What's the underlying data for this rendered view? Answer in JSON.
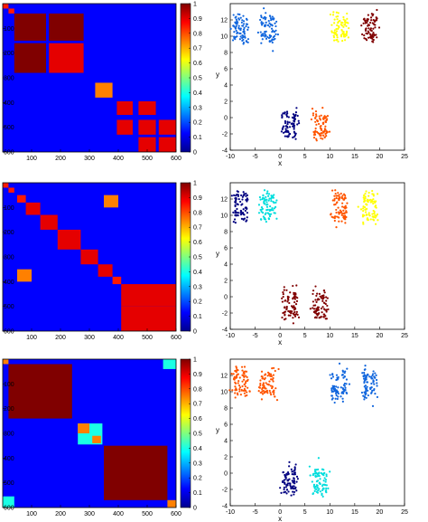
{
  "colorbar_ticks": [
    "0",
    "0.1",
    "0.2",
    "0.3",
    "0.4",
    "0.5",
    "0.6",
    "0.7",
    "0.8",
    "0.9",
    "1"
  ],
  "chart_data": [
    {
      "type": "heatmap",
      "row": 1,
      "size": 600,
      "xticks": [
        "100",
        "200",
        "300",
        "400",
        "500",
        "600"
      ],
      "yticks": [
        "100",
        "200",
        "300",
        "400",
        "500",
        "600"
      ],
      "zlim": [
        0,
        1
      ],
      "colorbar": true,
      "blocks": [
        {
          "from": 0,
          "to": 20,
          "value": 0.85
        },
        {
          "from": 20,
          "to": 40,
          "value": 0.85
        },
        {
          "from": 40,
          "to": 150,
          "value": 1.0
        },
        {
          "from": 160,
          "to": 280,
          "value": 0.9
        },
        {
          "from": 320,
          "to": 380,
          "value": 0.75
        },
        {
          "from": 395,
          "to": 450,
          "value": 0.9
        },
        {
          "from": 470,
          "to": 530,
          "value": 0.9
        },
        {
          "from": 540,
          "to": 600,
          "value": 0.9
        }
      ],
      "overlays": [
        {
          "x": [
            40,
            150
          ],
          "y": [
            160,
            280
          ],
          "value": 1.0
        },
        {
          "x": [
            160,
            280
          ],
          "y": [
            40,
            150
          ],
          "value": 1.0
        },
        {
          "x": [
            395,
            450
          ],
          "y": [
            470,
            530
          ],
          "value": 0.9
        },
        {
          "x": [
            470,
            530
          ],
          "y": [
            395,
            450
          ],
          "value": 0.9
        },
        {
          "x": [
            470,
            530
          ],
          "y": [
            540,
            600
          ],
          "value": 0.9
        },
        {
          "x": [
            540,
            600
          ],
          "y": [
            470,
            530
          ],
          "value": 0.9
        }
      ]
    },
    {
      "type": "scatter",
      "row": 1,
      "xlabel": "x",
      "ylabel": "y",
      "xlim": [
        -10,
        25
      ],
      "ylim": [
        -4,
        14
      ],
      "xticks": [
        -10,
        -5,
        0,
        5,
        10,
        15,
        20,
        25
      ],
      "yticks": [
        -4,
        -2,
        0,
        2,
        4,
        6,
        8,
        10,
        12
      ],
      "clusters": [
        {
          "cx": -8,
          "cy": 11,
          "color": "#1166dd"
        },
        {
          "cx": -2.5,
          "cy": 11,
          "color": "#1166dd"
        },
        {
          "cx": 12,
          "cy": 11,
          "color": "#ffff00"
        },
        {
          "cx": 18,
          "cy": 11,
          "color": "#800000"
        },
        {
          "cx": 2,
          "cy": -1,
          "color": "#000080"
        },
        {
          "cx": 8,
          "cy": -1,
          "color": "#ff5500"
        }
      ]
    },
    {
      "type": "heatmap",
      "row": 2,
      "size": 600,
      "xticks": [
        "100",
        "200",
        "300",
        "400",
        "500",
        "600"
      ],
      "yticks": [
        "100",
        "200",
        "300",
        "400",
        "500",
        "600"
      ],
      "zlim": [
        0,
        1
      ],
      "colorbar": true,
      "blocks": [
        {
          "from": 0,
          "to": 20,
          "value": 0.85
        },
        {
          "from": 20,
          "to": 40,
          "value": 0.85
        },
        {
          "from": 50,
          "to": 80,
          "value": 0.85
        },
        {
          "from": 80,
          "to": 130,
          "value": 0.9
        },
        {
          "from": 130,
          "to": 190,
          "value": 0.9
        },
        {
          "from": 190,
          "to": 270,
          "value": 0.9
        },
        {
          "from": 270,
          "to": 330,
          "value": 0.9
        },
        {
          "from": 330,
          "to": 380,
          "value": 0.9
        },
        {
          "from": 380,
          "to": 410,
          "value": 0.85
        },
        {
          "from": 410,
          "to": 500,
          "value": 0.9
        },
        {
          "from": 500,
          "to": 600,
          "value": 0.9
        }
      ],
      "overlays": [
        {
          "x": [
            350,
            400
          ],
          "y": [
            50,
            100
          ],
          "value": 0.75
        },
        {
          "x": [
            50,
            100
          ],
          "y": [
            350,
            400
          ],
          "value": 0.75
        },
        {
          "x": [
            410,
            500
          ],
          "y": [
            500,
            600
          ],
          "value": 0.9
        },
        {
          "x": [
            500,
            600
          ],
          "y": [
            410,
            500
          ],
          "value": 0.9
        }
      ]
    },
    {
      "type": "scatter",
      "row": 2,
      "xlabel": "x",
      "ylabel": "y",
      "xlim": [
        -10,
        25
      ],
      "ylim": [
        -4,
        14
      ],
      "xticks": [
        -10,
        -5,
        0,
        5,
        10,
        15,
        20,
        25
      ],
      "yticks": [
        -4,
        -2,
        0,
        2,
        4,
        6,
        8,
        10,
        12
      ],
      "clusters": [
        {
          "cx": -8,
          "cy": 11,
          "color": "#000080"
        },
        {
          "cx": -2.5,
          "cy": 11,
          "color": "#00dddd"
        },
        {
          "cx": 12,
          "cy": 11,
          "color": "#ff5500"
        },
        {
          "cx": 18,
          "cy": 11,
          "color": "#ffff00"
        },
        {
          "cx": 2,
          "cy": -1,
          "color": "#800000"
        },
        {
          "cx": 8,
          "cy": -1,
          "color": "#800000"
        }
      ]
    },
    {
      "type": "heatmap",
      "row": 3,
      "size": 600,
      "xticks": [
        "100",
        "200",
        "300",
        "400",
        "500",
        "600"
      ],
      "yticks": [
        "100",
        "200",
        "300",
        "400",
        "500",
        "600"
      ],
      "zlim": [
        0,
        1
      ],
      "colorbar": true,
      "blocks": [
        {
          "from": 0,
          "to": 20,
          "value": 0.75
        },
        {
          "from": 20,
          "to": 240,
          "value": 1.0
        },
        {
          "from": 260,
          "to": 300,
          "value": 0.75
        },
        {
          "from": 310,
          "to": 340,
          "value": 0.75
        },
        {
          "from": 350,
          "to": 570,
          "value": 1.0
        },
        {
          "from": 570,
          "to": 600,
          "value": 0.75
        }
      ],
      "overlays": [
        {
          "x": [
            555,
            600
          ],
          "y": [
            0,
            40
          ],
          "value": 0.4
        },
        {
          "x": [
            0,
            40
          ],
          "y": [
            555,
            600
          ],
          "value": 0.4
        },
        {
          "x": [
            260,
            345
          ],
          "y": [
            260,
            345
          ],
          "value": 0.4,
          "under": true
        }
      ]
    },
    {
      "type": "scatter",
      "row": 3,
      "xlabel": "x",
      "ylabel": "y",
      "xlim": [
        -10,
        25
      ],
      "ylim": [
        -4,
        14
      ],
      "xticks": [
        -10,
        -5,
        0,
        5,
        10,
        15,
        20,
        25
      ],
      "yticks": [
        -4,
        -2,
        0,
        2,
        4,
        6,
        8,
        10,
        12
      ],
      "clusters": [
        {
          "cx": -8,
          "cy": 11,
          "color": "#ff5500"
        },
        {
          "cx": -2.5,
          "cy": 11,
          "color": "#ff5500"
        },
        {
          "cx": 12,
          "cy": 11,
          "color": "#1166dd"
        },
        {
          "cx": 18,
          "cy": 11,
          "color": "#1166dd"
        },
        {
          "cx": 2,
          "cy": -1,
          "color": "#000080"
        },
        {
          "cx": 8,
          "cy": -1,
          "color": "#00dddd"
        }
      ]
    }
  ]
}
